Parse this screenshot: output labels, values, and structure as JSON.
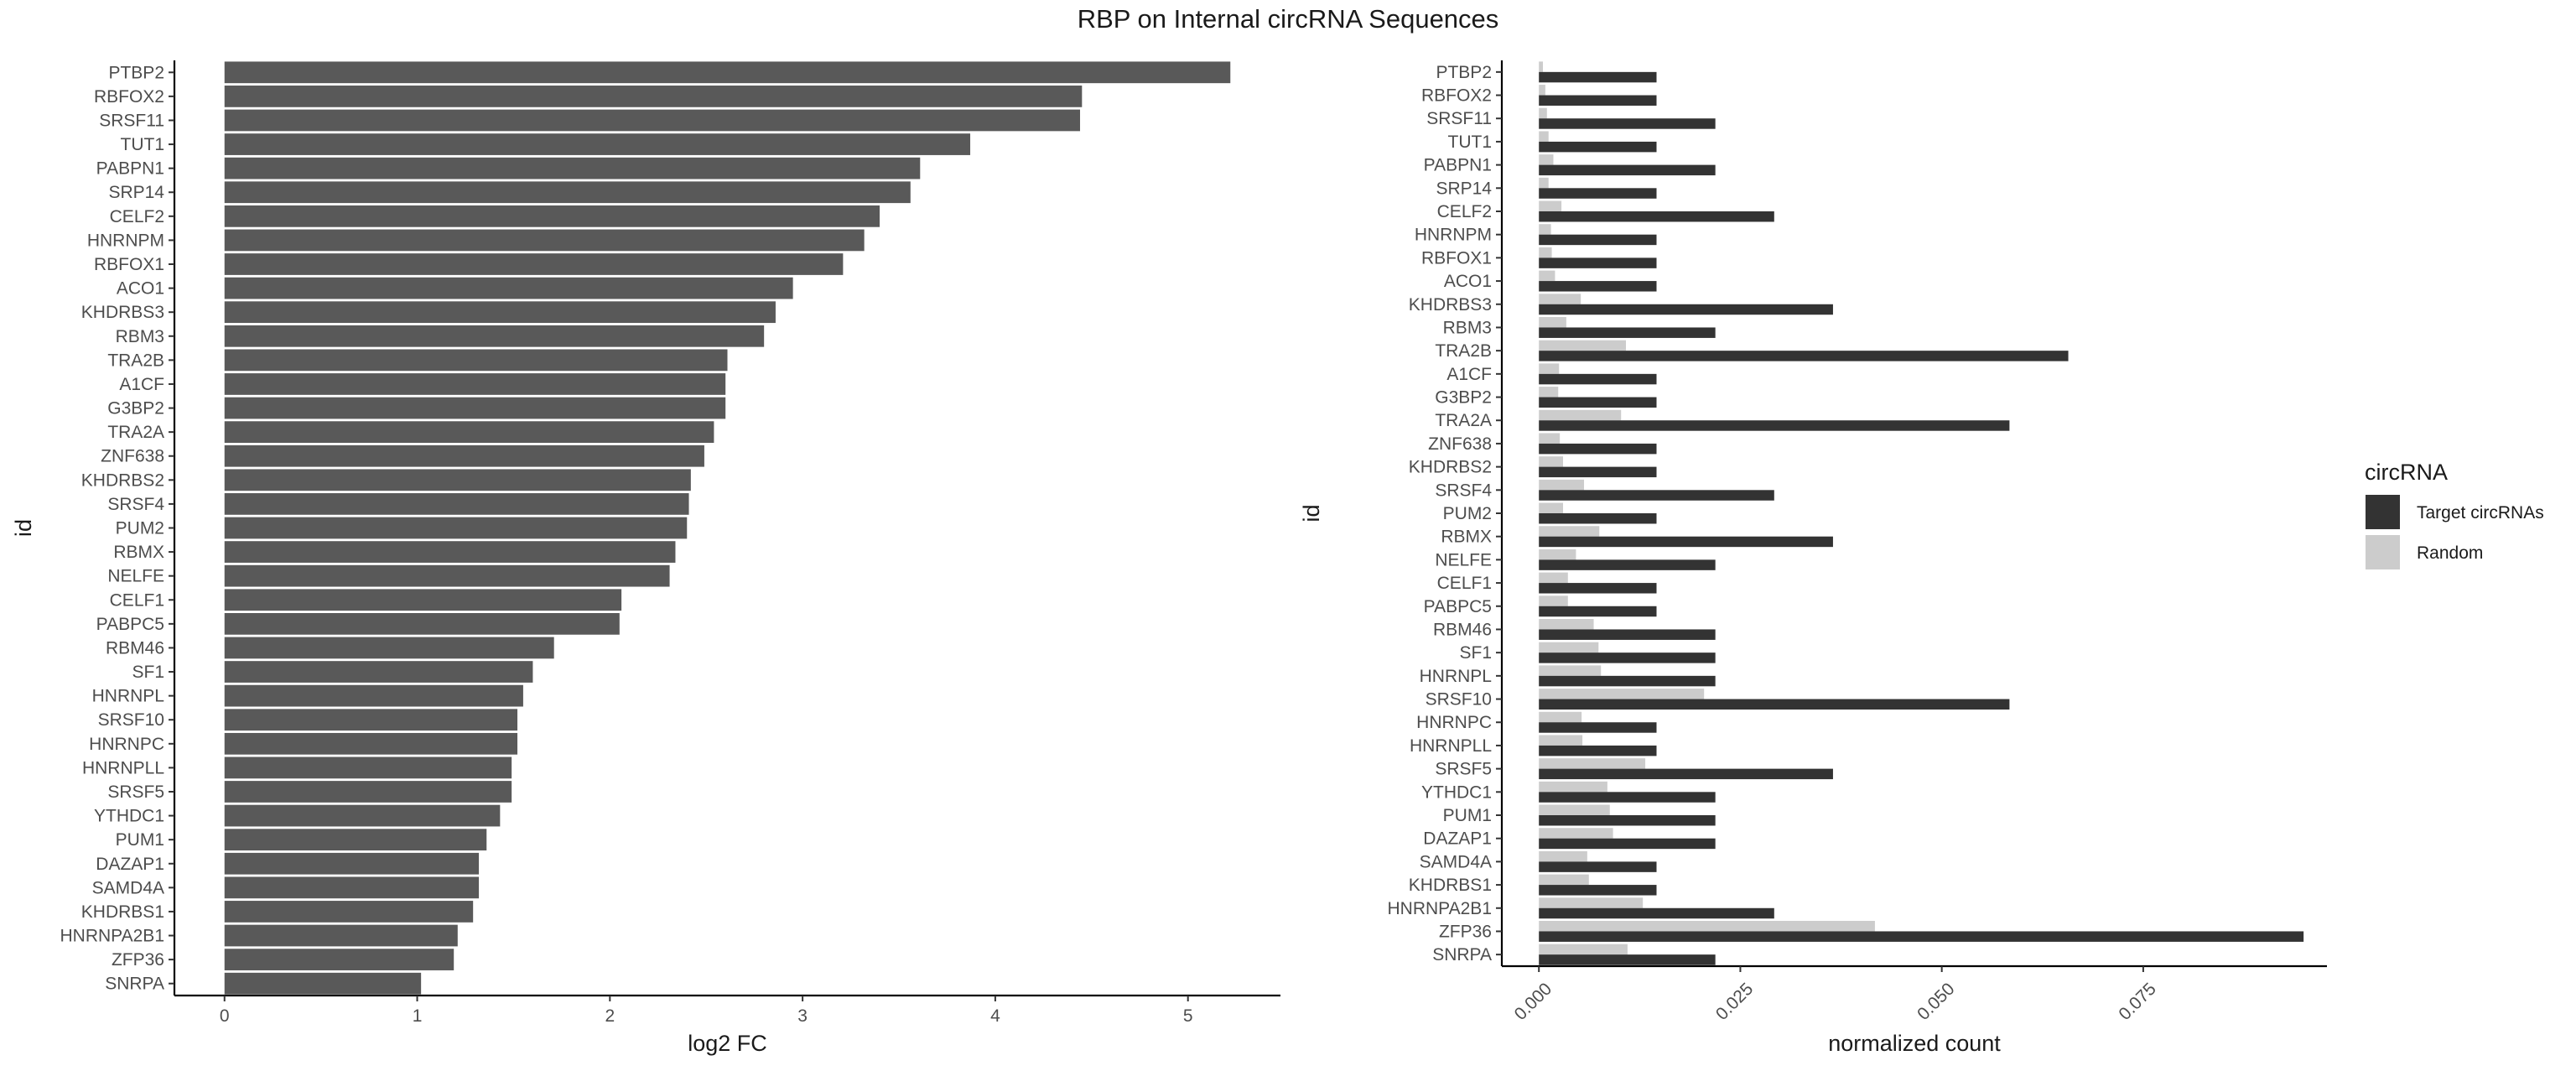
{
  "title": "RBP on Internal circRNA Sequences",
  "chart_data": [
    {
      "type": "bar",
      "orientation": "horizontal",
      "xlabel": "log2 FC",
      "ylabel": "id",
      "xlim": [
        -0.26,
        5.48
      ],
      "xticks": [
        0,
        1,
        2,
        3,
        4,
        5
      ],
      "grid": false,
      "categories": [
        "PTBP2",
        "RBFOX2",
        "SRSF11",
        "TUT1",
        "PABPN1",
        "SRP14",
        "CELF2",
        "HNRNPM",
        "RBFOX1",
        "ACO1",
        "KHDRBS3",
        "RBM3",
        "TRA2B",
        "A1CF",
        "G3BP2",
        "TRA2A",
        "ZNF638",
        "KHDRBS2",
        "SRSF4",
        "PUM2",
        "RBMX",
        "NELFE",
        "CELF1",
        "PABPC5",
        "RBM46",
        "SF1",
        "HNRNPL",
        "SRSF10",
        "HNRNPC",
        "HNRNPLL",
        "SRSF5",
        "YTHDC1",
        "PUM1",
        "DAZAP1",
        "SAMD4A",
        "KHDRBS1",
        "HNRNPA2B1",
        "ZFP36",
        "SNRPA"
      ],
      "values": [
        5.22,
        4.45,
        4.44,
        3.87,
        3.61,
        3.56,
        3.4,
        3.32,
        3.21,
        2.95,
        2.86,
        2.8,
        2.61,
        2.6,
        2.6,
        2.54,
        2.49,
        2.42,
        2.41,
        2.4,
        2.34,
        2.31,
        2.06,
        2.05,
        1.71,
        1.6,
        1.55,
        1.52,
        1.52,
        1.49,
        1.49,
        1.43,
        1.36,
        1.32,
        1.32,
        1.29,
        1.21,
        1.19,
        1.02
      ],
      "bar_color": "#595959"
    },
    {
      "type": "bar",
      "orientation": "horizontal",
      "xlabel": "normalized count",
      "ylabel": "id",
      "xlim": [
        -0.0046,
        0.0978
      ],
      "xticks": [
        0.0,
        0.025,
        0.05,
        0.075
      ],
      "xtick_labels": [
        "0.000",
        "0.025",
        "0.050",
        "0.075"
      ],
      "grid": false,
      "legend_title": "circRNA",
      "legend_position": "right",
      "categories": [
        "PTBP2",
        "RBFOX2",
        "SRSF11",
        "TUT1",
        "PABPN1",
        "SRP14",
        "CELF2",
        "HNRNPM",
        "RBFOX1",
        "ACO1",
        "KHDRBS3",
        "RBM3",
        "TRA2B",
        "A1CF",
        "G3BP2",
        "TRA2A",
        "ZNF638",
        "KHDRBS2",
        "SRSF4",
        "PUM2",
        "RBMX",
        "NELFE",
        "CELF1",
        "PABPC5",
        "RBM46",
        "SF1",
        "HNRNPL",
        "SRSF10",
        "HNRNPC",
        "HNRNPLL",
        "SRSF5",
        "YTHDC1",
        "PUM1",
        "DAZAP1",
        "SAMD4A",
        "KHDRBS1",
        "HNRNPA2B1",
        "ZFP36",
        "SNRPA"
      ],
      "series": [
        {
          "name": "Target circRNAs",
          "color": "#333333",
          "values": [
            0.0146,
            0.0146,
            0.0219,
            0.0146,
            0.0219,
            0.0146,
            0.0292,
            0.0146,
            0.0146,
            0.0146,
            0.0365,
            0.0219,
            0.0657,
            0.0146,
            0.0146,
            0.0584,
            0.0146,
            0.0146,
            0.0292,
            0.0146,
            0.0365,
            0.0219,
            0.0146,
            0.0146,
            0.0219,
            0.0219,
            0.0219,
            0.0584,
            0.0146,
            0.0146,
            0.0365,
            0.0219,
            0.0219,
            0.0219,
            0.0146,
            0.0146,
            0.0292,
            0.0949,
            0.0219
          ]
        },
        {
          "name": "Random",
          "color": "#cccccc",
          "values": [
            0.0005,
            0.0008,
            0.001,
            0.0012,
            0.0018,
            0.0012,
            0.0028,
            0.0015,
            0.0016,
            0.002,
            0.0052,
            0.0034,
            0.0108,
            0.0025,
            0.0024,
            0.0102,
            0.0026,
            0.003,
            0.0056,
            0.003,
            0.0075,
            0.0046,
            0.0036,
            0.0036,
            0.0068,
            0.0074,
            0.0077,
            0.0205,
            0.0053,
            0.0054,
            0.0132,
            0.0085,
            0.0088,
            0.0092,
            0.006,
            0.0062,
            0.0129,
            0.0417,
            0.011
          ]
        }
      ]
    }
  ]
}
